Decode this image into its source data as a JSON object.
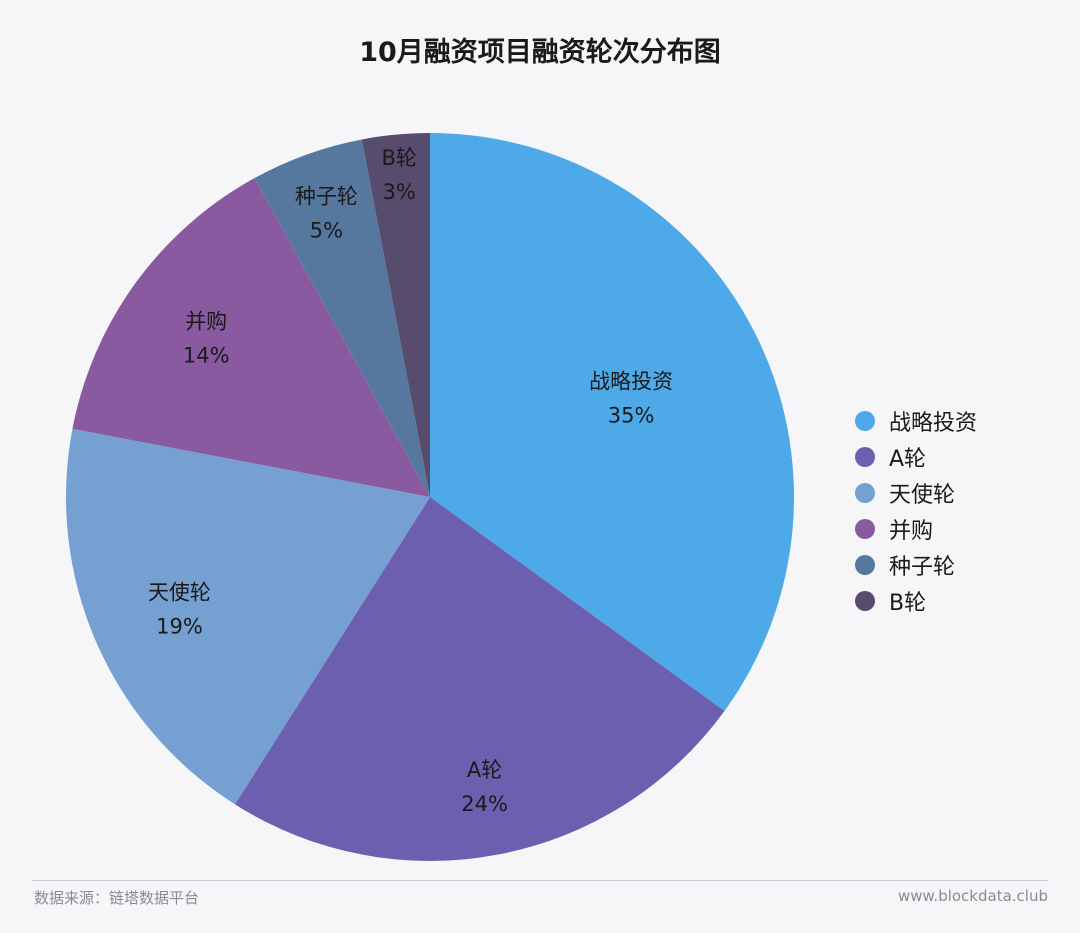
{
  "title": "10月融资项目融资轮次分布图",
  "chart_data": {
    "type": "pie",
    "title": "10月融资项目融资轮次分布图",
    "legend_position": "right",
    "slices": [
      {
        "name": "战略投资",
        "label": "战略投资",
        "value": 35,
        "value_label": "35%",
        "color": "#4da9e8"
      },
      {
        "name": "A轮",
        "label": "A轮",
        "value": 24,
        "value_label": "24%",
        "color": "#6c5fb0"
      },
      {
        "name": "天使轮",
        "label": "天使轮",
        "value": 19,
        "value_label": "19%",
        "color": "#76a0d2"
      },
      {
        "name": "并购",
        "label": "并购",
        "value": 14,
        "value_label": "14%",
        "color": "#8a5aa0"
      },
      {
        "name": "种子轮",
        "label": "种子轮",
        "value": 5,
        "value_label": "5%",
        "color": "#57789e"
      },
      {
        "name": "B轮",
        "label": "B轮",
        "value": 3,
        "value_label": "3%",
        "color": "#574b6e"
      }
    ]
  },
  "legend": [
    "战略投资",
    "A轮",
    "天使轮",
    "并购",
    "种子轮",
    "B轮"
  ],
  "footer": {
    "source": "数据来源：链塔数据平台",
    "site": "www.blockdata.club"
  }
}
